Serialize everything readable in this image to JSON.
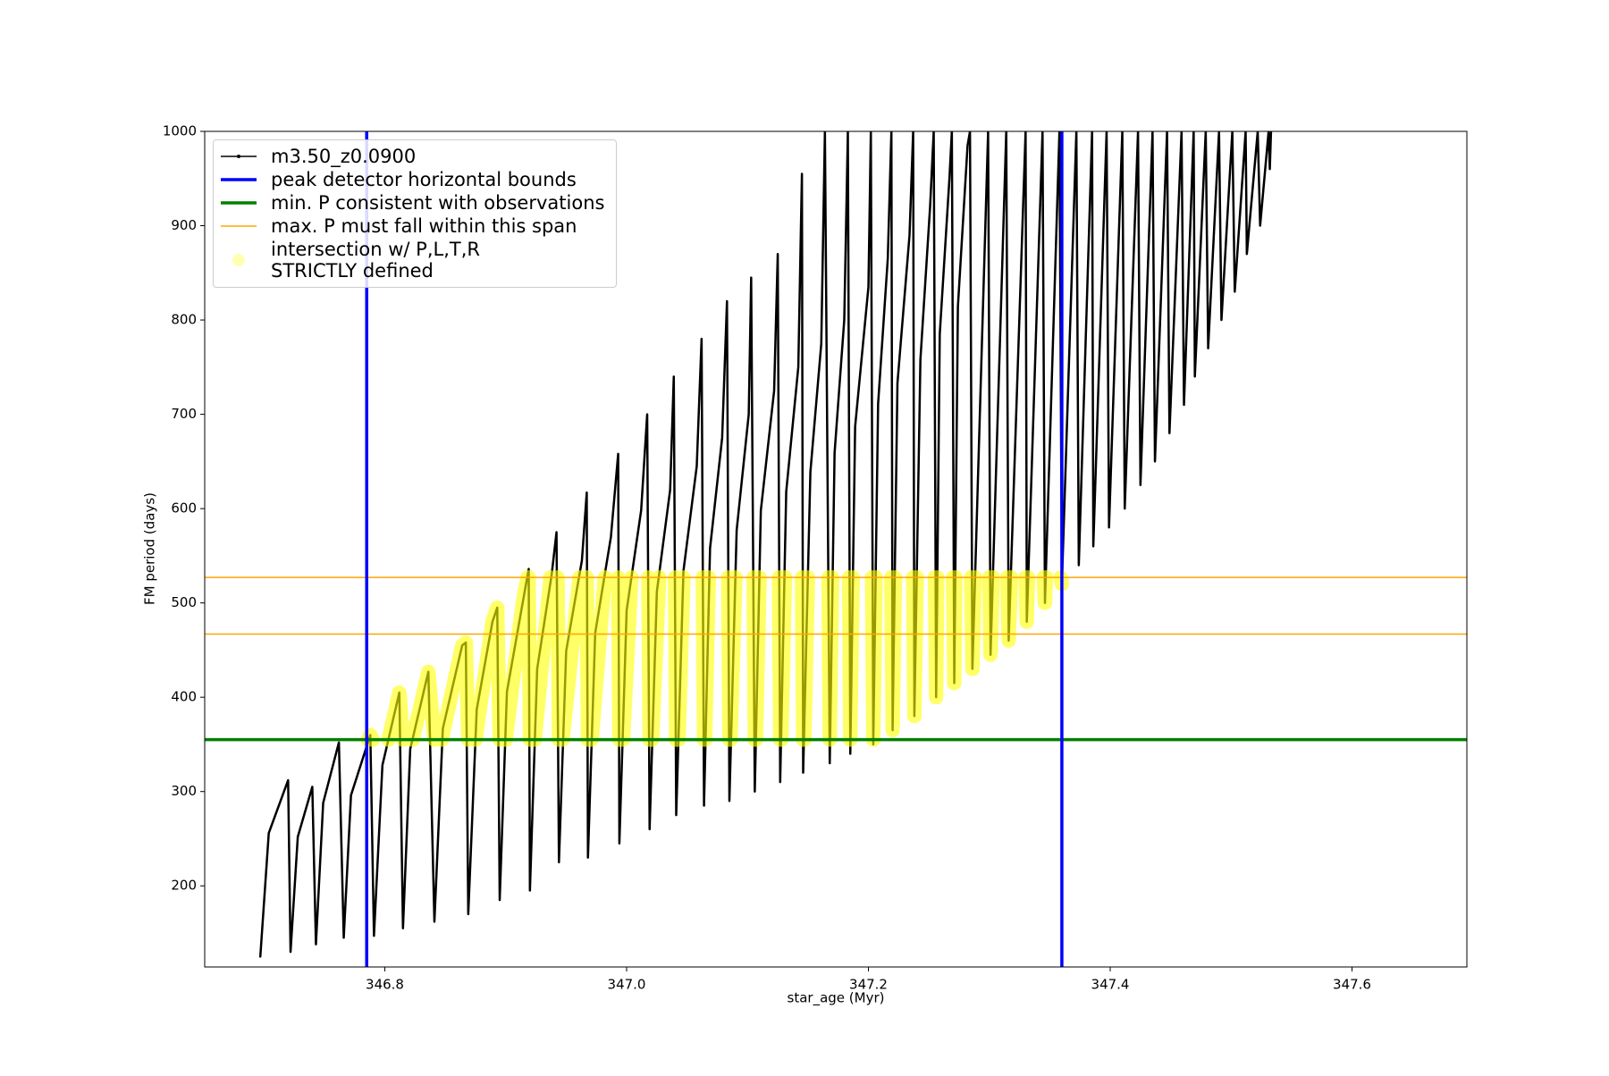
{
  "chart_data": {
    "type": "line",
    "xlabel": "star_age (Myr)",
    "ylabel": "FM period (days)",
    "xlim": [
      346.651,
      347.695
    ],
    "ylim": [
      114,
      1000
    ],
    "xticks": [
      346.8,
      {
        "value": 347,
        "label": "347.0"
      },
      347.2,
      347.4,
      347.6
    ],
    "yticks": [
      200,
      300,
      400,
      500,
      600,
      700,
      800,
      900,
      1000
    ],
    "grid": false,
    "legend": "upper left",
    "series": [
      {
        "name": "m3.50_z0.0900",
        "color": "#000000",
        "x": [
          346.697,
          346.704,
          346.72,
          346.722,
          346.728,
          346.74,
          346.743,
          346.749,
          346.762,
          346.766,
          346.772,
          346.788,
          346.791,
          346.798,
          346.812,
          346.815,
          346.821,
          346.836,
          346.841,
          346.848,
          346.864,
          346.867,
          346.869,
          346.876,
          346.889,
          346.893,
          346.895,
          346.901,
          346.914,
          346.919,
          346.92,
          346.926,
          346.938,
          346.942,
          346.944,
          346.95,
          346.963,
          346.967,
          346.968,
          346.974,
          346.987,
          346.993,
          346.994,
          347.0,
          347.012,
          347.017,
          347.019,
          347.025,
          347.036,
          347.039,
          347.041,
          347.047,
          347.058,
          347.062,
          347.064,
          347.069,
          347.079,
          347.083,
          347.085,
          347.091,
          347.101,
          347.103,
          347.106,
          347.111,
          347.122,
          347.125,
          347.127,
          347.132,
          347.142,
          347.145,
          347.146,
          347.152,
          347.161,
          347.164,
          347.168,
          347.172,
          347.18,
          347.183,
          347.185,
          347.189,
          347.2,
          347.202,
          347.204,
          347.208,
          347.216,
          347.219,
          347.22,
          347.224,
          347.234,
          347.237,
          347.238,
          347.243,
          347.251,
          347.254,
          347.256,
          347.259,
          347.267,
          347.269,
          347.271,
          347.274,
          347.282,
          347.284,
          347.286,
          347.299,
          347.301,
          347.314,
          347.316,
          347.33,
          347.331,
          347.344,
          347.346,
          347.358,
          347.36,
          347.372,
          347.374,
          347.385,
          347.386,
          347.397,
          347.399,
          347.41,
          347.412,
          347.423,
          347.425,
          347.435,
          347.437,
          347.447,
          347.449,
          347.459,
          347.461,
          347.469,
          347.47,
          347.479,
          347.481,
          347.49,
          347.492,
          347.501,
          347.503,
          347.512,
          347.513,
          347.522,
          347.524,
          347.531,
          347.532,
          347.533
        ],
        "values": [
          125,
          256,
          312,
          130,
          252,
          305,
          138,
          288,
          352,
          145,
          296,
          360,
          147,
          328,
          405,
          155,
          345,
          427,
          162,
          367,
          455,
          458,
          170,
          387,
          480,
          495,
          185,
          406,
          500,
          536,
          195,
          430,
          530,
          575,
          225,
          449,
          545,
          617,
          230,
          468,
          570,
          658,
          245,
          492,
          598,
          700,
          260,
          512,
          620,
          740,
          275,
          534,
          645,
          780,
          285,
          558,
          675,
          820,
          290,
          577,
          700,
          845,
          300,
          598,
          725,
          870,
          310,
          618,
          750,
          955,
          320,
          639,
          775,
          1000,
          330,
          659,
          800,
          1000,
          340,
          687,
          835,
          1000,
          350,
          711,
          865,
          1000,
          365,
          733,
          890,
          1000,
          380,
          758,
          920,
          1000,
          400,
          785,
          950,
          1000,
          415,
          814,
          985,
          1000,
          430,
          1000,
          445,
          1000,
          460,
          1000,
          480,
          1000,
          500,
          1000,
          520,
          1000,
          540,
          1000,
          560,
          1000,
          580,
          1000,
          600,
          1000,
          625,
          1000,
          650,
          1000,
          680,
          1000,
          710,
          1000,
          740,
          1000,
          770,
          1000,
          800,
          1000,
          830,
          1000,
          870,
          1000,
          900,
          1000,
          960,
          1000
        ]
      },
      {
        "name": "intersection w/ P,L,T,R\nSTRICTLY defined",
        "color": "#ffff00",
        "x": [
          346.786,
          346.788,
          346.79,
          null,
          346.803,
          346.812,
          346.815,
          null,
          346.823,
          346.836,
          346.841,
          null,
          346.847,
          346.864,
          346.867,
          346.869,
          null,
          346.875,
          346.889,
          346.893,
          346.895,
          null,
          346.9,
          346.914,
          346.918,
          null,
          346.919,
          346.92,
          null,
          346.924,
          346.937,
          null,
          346.943,
          346.944,
          null,
          346.947,
          346.961,
          null,
          346.967,
          346.968,
          null,
          346.971,
          346.982,
          null,
          346.993,
          346.994,
          null,
          346.997,
          347.004,
          null,
          347.018,
          347.019,
          null,
          347.021,
          347.027,
          null,
          347.04,
          347.041,
          null,
          347.043,
          347.047,
          null,
          347.063,
          347.064,
          null,
          347.065,
          347.068,
          null,
          347.084,
          347.085,
          null,
          347.086,
          347.09,
          null,
          347.105,
          347.106,
          null,
          347.107,
          347.11,
          null,
          347.126,
          347.127,
          null,
          347.128,
          347.131,
          null,
          347.145,
          347.146,
          null,
          347.147,
          347.15,
          null,
          347.167,
          347.168,
          347.17,
          null,
          347.184,
          347.185,
          347.187,
          null,
          347.203,
          347.204,
          347.206,
          null,
          347.219,
          347.22,
          347.222,
          null,
          347.237,
          347.238,
          347.24,
          null,
          347.255,
          347.256,
          347.257,
          null,
          347.27,
          347.271,
          347.272,
          null,
          347.285,
          347.286,
          347.288,
          null,
          347.3,
          347.301,
          347.303,
          null,
          347.315,
          347.316,
          347.318,
          null,
          347.33,
          347.331,
          347.332,
          null,
          347.345,
          347.346,
          347.347,
          null,
          347.359,
          347.36
        ],
        "values": [
          355,
          360,
          355,
          null,
          355,
          405,
          355,
          null,
          355,
          427,
          355,
          null,
          355,
          455,
          458,
          355,
          null,
          355,
          480,
          495,
          355,
          null,
          355,
          500,
          527,
          null,
          527,
          355,
          null,
          355,
          527,
          null,
          527,
          355,
          null,
          355,
          527,
          null,
          527,
          355,
          null,
          355,
          527,
          null,
          527,
          355,
          null,
          355,
          527,
          null,
          527,
          355,
          null,
          355,
          527,
          null,
          527,
          355,
          null,
          355,
          527,
          null,
          527,
          355,
          null,
          355,
          527,
          null,
          527,
          355,
          null,
          355,
          527,
          null,
          527,
          355,
          null,
          355,
          527,
          null,
          527,
          355,
          null,
          355,
          527,
          null,
          527,
          355,
          null,
          355,
          527,
          null,
          527,
          355,
          527,
          null,
          527,
          355,
          527,
          null,
          527,
          355,
          527,
          null,
          527,
          365,
          527,
          null,
          527,
          380,
          527,
          null,
          527,
          400,
          527,
          null,
          527,
          415,
          527,
          null,
          527,
          430,
          527,
          null,
          527,
          445,
          527,
          null,
          527,
          460,
          527,
          null,
          527,
          480,
          527,
          null,
          527,
          500,
          527,
          null,
          527,
          520
        ]
      }
    ],
    "vlines": {
      "name": "peak detector horizontal bounds",
      "color": "#0000ff",
      "values": [
        346.785,
        347.36
      ]
    },
    "hlines": [
      {
        "name": "min. P consistent with observations",
        "color": "#008000",
        "values": [
          355
        ]
      },
      {
        "name": "max. P must fall within this span",
        "color": "#ffa500",
        "values": [
          467,
          527
        ]
      }
    ]
  }
}
